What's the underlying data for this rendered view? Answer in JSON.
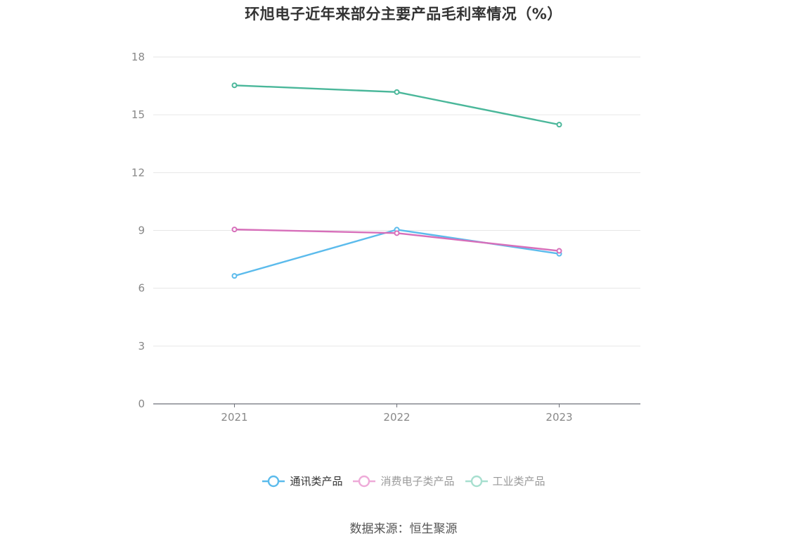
{
  "chart_data": {
    "type": "line",
    "title": "环旭电子近年来部分主要产品毛利率情况（%）",
    "categories": [
      "2021",
      "2022",
      "2023"
    ],
    "ylim": [
      0,
      18
    ],
    "yticks": [
      0,
      3,
      6,
      9,
      12,
      15,
      18
    ],
    "grid": true,
    "legend_position": "bottom",
    "series": [
      {
        "name": "通讯类产品",
        "values": [
          6.64,
          9.04,
          7.79
        ],
        "color": "#5bbbec",
        "legend_color": "#5bbbec"
      },
      {
        "name": "消费电子类产品",
        "values": [
          9.05,
          8.86,
          7.94
        ],
        "color": "#d76fba",
        "legend_color": "#eeaad8"
      },
      {
        "name": "工业类产品",
        "values": [
          16.53,
          16.18,
          14.49
        ],
        "color": "#4ab79a",
        "legend_color": "#a7dfcf"
      }
    ]
  },
  "source_text": "数据来源：恒生聚源"
}
